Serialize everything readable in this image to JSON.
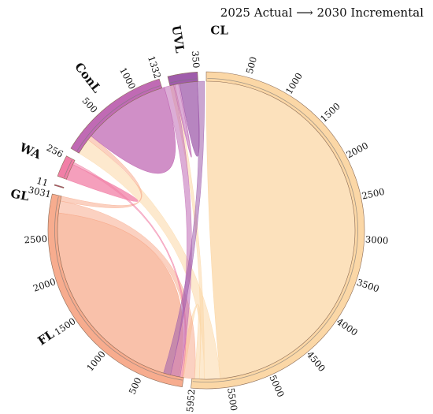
{
  "title": {
    "left": "2025 Actual",
    "right": "2030 Incremental",
    "arrow_icon": "right-arrow-icon"
  },
  "chart_data": {
    "type": "chord",
    "segments": [
      {
        "id": "CL",
        "label": "CL",
        "total": 5952,
        "color": "#fbd7a6",
        "ticks": [
          500,
          1000,
          1500,
          2000,
          2500,
          3000,
          3500,
          4000,
          4500,
          5000,
          5500
        ]
      },
      {
        "id": "FL",
        "label": "FL",
        "total": 3031,
        "color": "#f7ac8e",
        "ticks": [
          500,
          1000,
          1500,
          2000,
          2500
        ]
      },
      {
        "id": "GL",
        "label": "GL",
        "total": 11,
        "color": "#c43f72",
        "ticks": []
      },
      {
        "id": "WA",
        "label": "WA",
        "total": 256,
        "color": "#f17fa6",
        "ticks": []
      },
      {
        "id": "ConL",
        "label": "ConL",
        "total": 1332,
        "color": "#c06ab4",
        "ticks": [
          500,
          1000
        ]
      },
      {
        "id": "UVL",
        "label": "UVL",
        "total": 350,
        "color": "#9f5cab",
        "ticks": []
      }
    ],
    "end_labels": [
      "5952",
      "3031",
      "11",
      "256",
      "1332",
      "350"
    ],
    "flows": [
      {
        "from": "CL",
        "to": "CL",
        "value": 5600
      },
      {
        "from": "CL",
        "to": "ConL",
        "value": 200
      },
      {
        "from": "CL",
        "to": "UVL",
        "value": 60
      },
      {
        "from": "CL",
        "to": "FL",
        "value": 60
      },
      {
        "from": "FL",
        "to": "FL",
        "value": 2760
      },
      {
        "from": "FL",
        "to": "CL",
        "value": 150
      },
      {
        "from": "FL",
        "to": "ConL",
        "value": 60
      },
      {
        "from": "WA",
        "to": "WA",
        "value": 200
      },
      {
        "from": "WA",
        "to": "CL",
        "value": 30
      },
      {
        "from": "ConL",
        "to": "ConL",
        "value": 1100
      },
      {
        "from": "ConL",
        "to": "CL",
        "value": 120
      },
      {
        "from": "ConL",
        "to": "UVL",
        "value": 60
      },
      {
        "from": "UVL",
        "to": "UVL",
        "value": 220
      },
      {
        "from": "UVL",
        "to": "CL",
        "value": 90
      }
    ]
  }
}
